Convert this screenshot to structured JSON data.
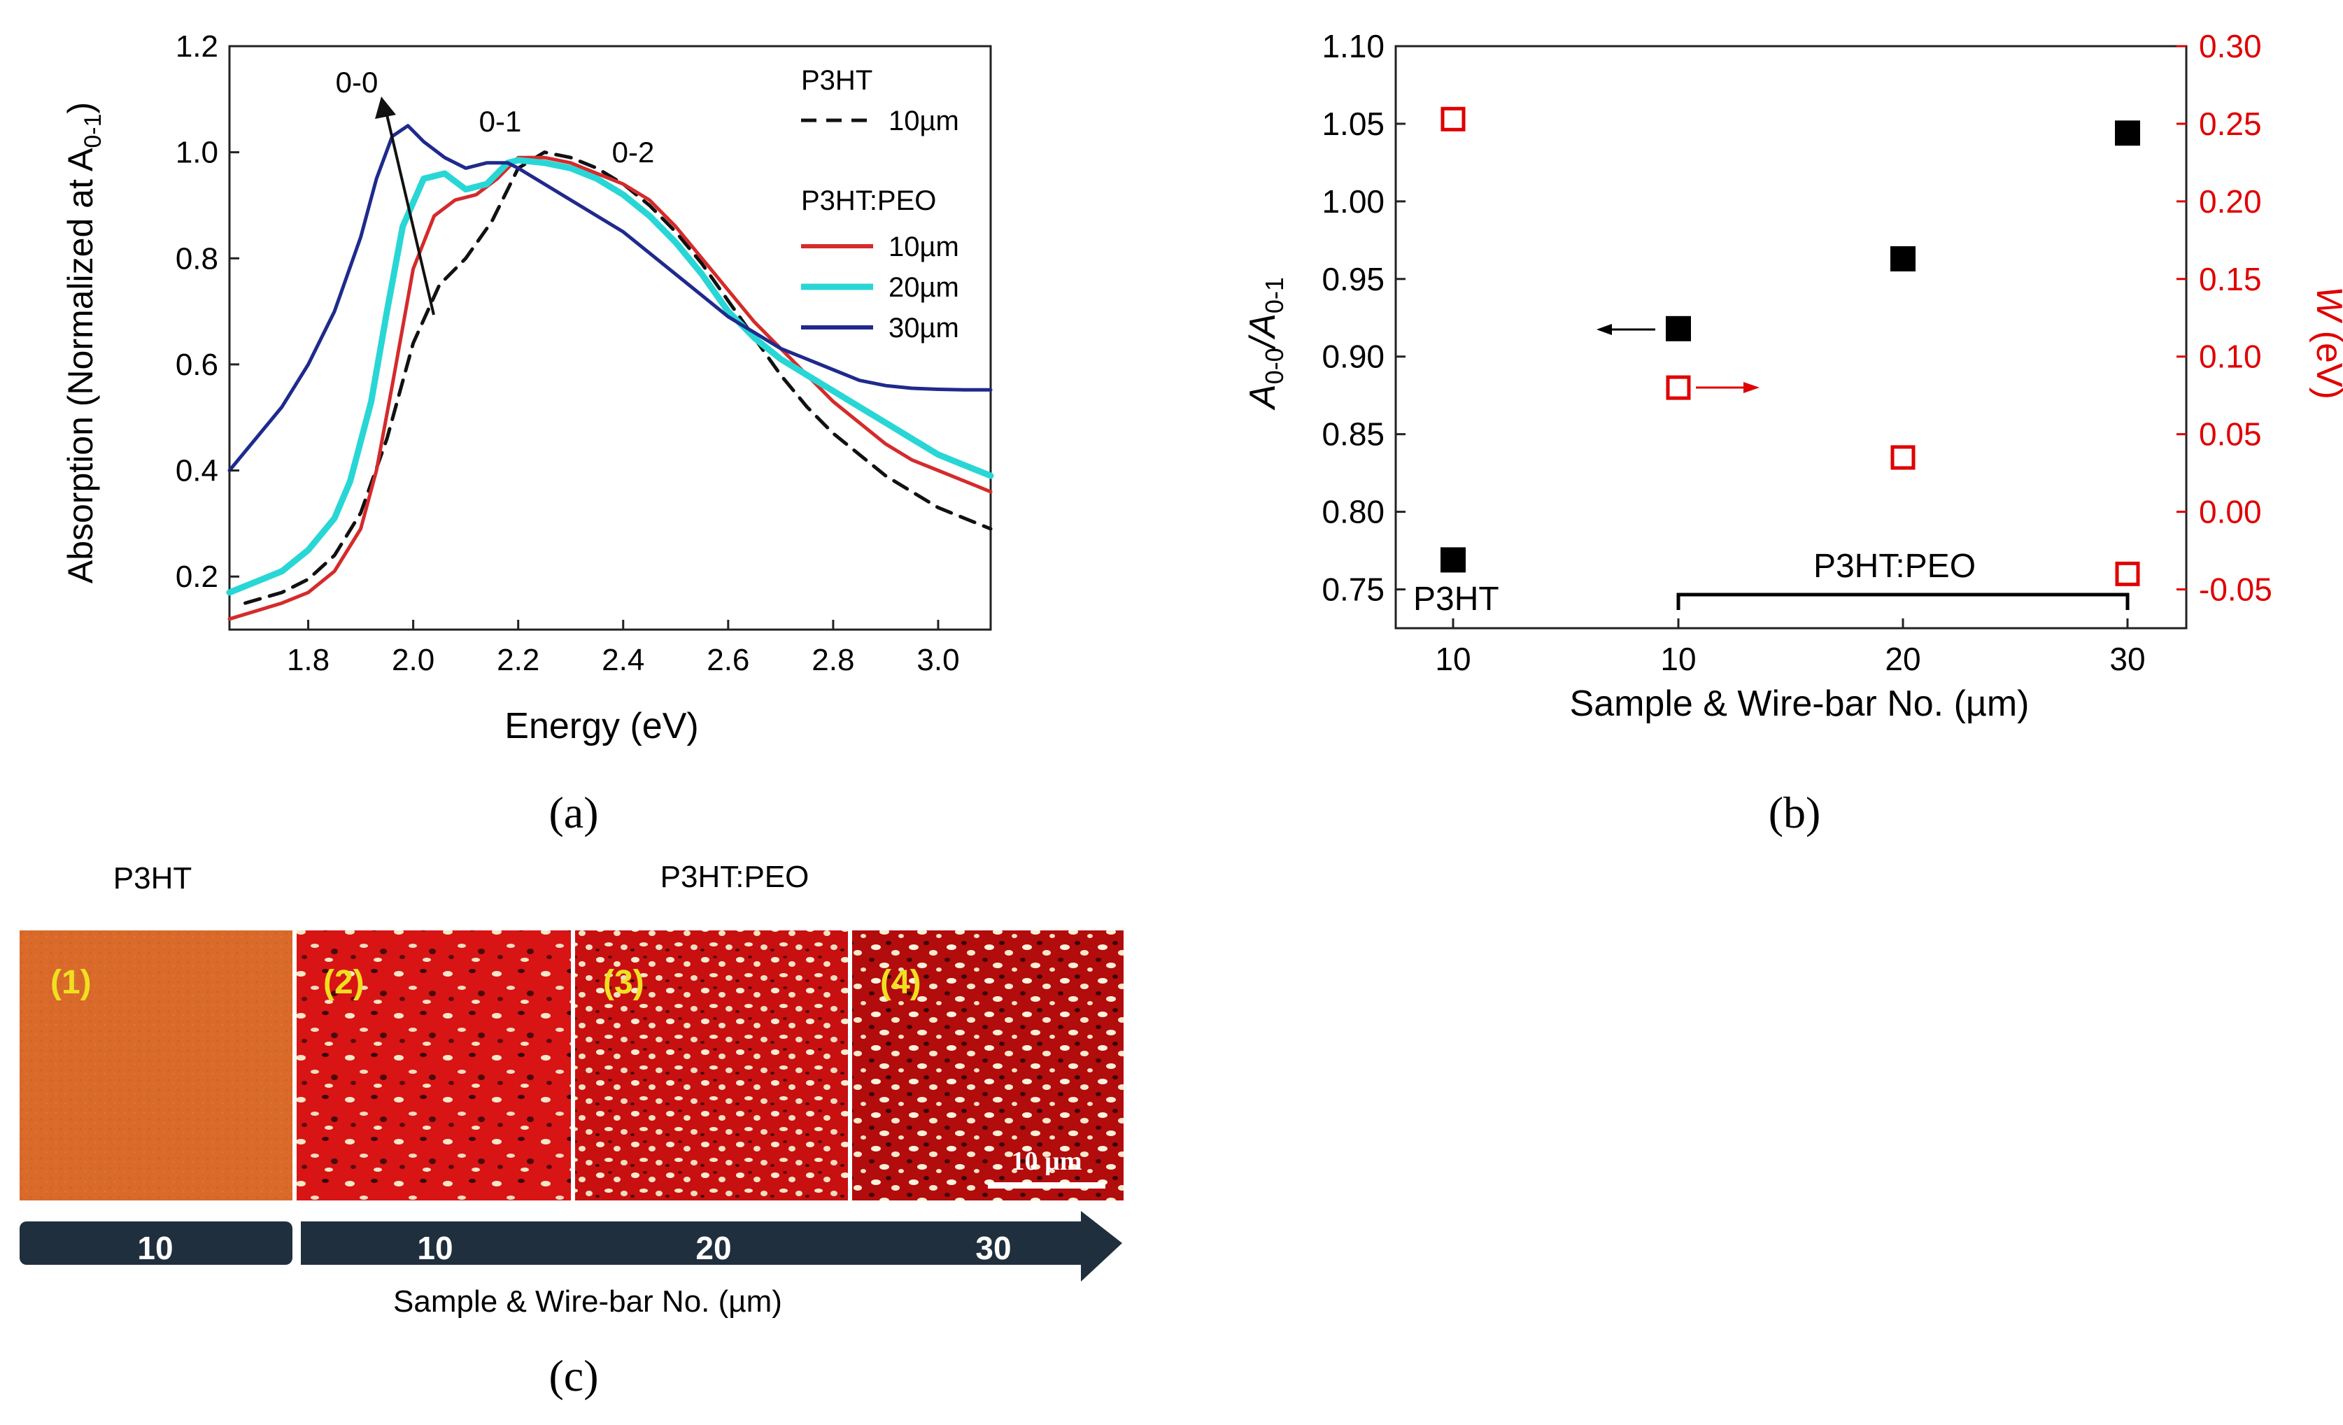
{
  "chart_data": [
    {
      "type": "line",
      "panel": "(a)",
      "xlabel": "Energy (eV)",
      "ylabel": "Absorption (Normalized at A",
      "ylabel_sub": "0-1",
      "ylabel_close": ")",
      "xlim": [
        1.65,
        3.1
      ],
      "ylim": [
        0.1,
        1.2
      ],
      "xticks": [
        "1.8",
        "2.0",
        "2.2",
        "2.4",
        "2.6",
        "2.8",
        "3.0"
      ],
      "yticks": [
        "0.2",
        "0.4",
        "0.6",
        "0.8",
        "1.0",
        "1.2"
      ],
      "annotations": [
        "0-0",
        "0-1",
        "0-2"
      ],
      "legend": {
        "group1_title": "P3HT",
        "group2_title": "P3HT:PEO"
      },
      "series": [
        {
          "name": "10µm",
          "group": "P3HT",
          "color": "#111111",
          "style": "dashed",
          "x": [
            1.68,
            1.75,
            1.8,
            1.85,
            1.9,
            1.95,
            2.0,
            2.05,
            2.1,
            2.15,
            2.2,
            2.25,
            2.3,
            2.35,
            2.4,
            2.45,
            2.5,
            2.55,
            2.6,
            2.65,
            2.7,
            2.75,
            2.8,
            2.85,
            2.9,
            2.95,
            3.0,
            3.05,
            3.1
          ],
          "y": [
            0.15,
            0.17,
            0.195,
            0.24,
            0.32,
            0.46,
            0.64,
            0.75,
            0.8,
            0.87,
            0.97,
            1.0,
            0.99,
            0.97,
            0.94,
            0.9,
            0.85,
            0.79,
            0.72,
            0.65,
            0.58,
            0.52,
            0.47,
            0.43,
            0.39,
            0.36,
            0.33,
            0.31,
            0.29
          ]
        },
        {
          "name": "10µm",
          "group": "P3HT:PEO",
          "color": "#d42b2b",
          "style": "solid",
          "x": [
            1.65,
            1.7,
            1.75,
            1.8,
            1.85,
            1.9,
            1.93,
            1.96,
            2.0,
            2.04,
            2.08,
            2.12,
            2.16,
            2.2,
            2.25,
            2.3,
            2.35,
            2.4,
            2.45,
            2.5,
            2.55,
            2.6,
            2.65,
            2.7,
            2.75,
            2.8,
            2.85,
            2.9,
            2.95,
            3.0,
            3.05,
            3.1
          ],
          "y": [
            0.12,
            0.135,
            0.15,
            0.17,
            0.21,
            0.29,
            0.4,
            0.56,
            0.78,
            0.88,
            0.91,
            0.92,
            0.95,
            0.99,
            0.99,
            0.98,
            0.96,
            0.94,
            0.91,
            0.86,
            0.8,
            0.74,
            0.68,
            0.63,
            0.58,
            0.53,
            0.49,
            0.45,
            0.42,
            0.4,
            0.38,
            0.36
          ]
        },
        {
          "name": "20µm",
          "group": "P3HT:PEO",
          "color": "#29d6d6",
          "style": "solid",
          "x": [
            1.65,
            1.7,
            1.75,
            1.8,
            1.85,
            1.88,
            1.92,
            1.95,
            1.98,
            2.02,
            2.06,
            2.1,
            2.14,
            2.18,
            2.2,
            2.25,
            2.3,
            2.35,
            2.4,
            2.45,
            2.5,
            2.55,
            2.6,
            2.65,
            2.7,
            2.75,
            2.8,
            2.85,
            2.9,
            2.95,
            3.0,
            3.05,
            3.1
          ],
          "y": [
            0.17,
            0.19,
            0.21,
            0.25,
            0.31,
            0.38,
            0.53,
            0.7,
            0.86,
            0.95,
            0.96,
            0.93,
            0.94,
            0.98,
            0.985,
            0.98,
            0.97,
            0.95,
            0.92,
            0.88,
            0.83,
            0.77,
            0.7,
            0.65,
            0.61,
            0.58,
            0.55,
            0.52,
            0.49,
            0.46,
            0.43,
            0.41,
            0.39
          ]
        },
        {
          "name": "30µm",
          "group": "P3HT:PEO",
          "color": "#1f2a8c",
          "style": "solid",
          "x": [
            1.65,
            1.7,
            1.75,
            1.8,
            1.85,
            1.9,
            1.93,
            1.96,
            1.99,
            2.02,
            2.06,
            2.1,
            2.14,
            2.18,
            2.2,
            2.25,
            2.3,
            2.35,
            2.4,
            2.45,
            2.5,
            2.55,
            2.6,
            2.65,
            2.7,
            2.75,
            2.8,
            2.85,
            2.9,
            2.95,
            3.0,
            3.05,
            3.1
          ],
          "y": [
            0.4,
            0.46,
            0.52,
            0.6,
            0.7,
            0.84,
            0.95,
            1.03,
            1.05,
            1.02,
            0.99,
            0.97,
            0.98,
            0.98,
            0.97,
            0.94,
            0.91,
            0.88,
            0.85,
            0.81,
            0.77,
            0.73,
            0.69,
            0.66,
            0.63,
            0.61,
            0.59,
            0.57,
            0.56,
            0.555,
            0.553,
            0.552,
            0.552
          ]
        }
      ]
    },
    {
      "type": "scatter",
      "panel": "(b)",
      "xlabel": "Sample & Wire-bar No. (µm)",
      "ylabel_left_a": "A",
      "ylabel_left_a_sub": "0-0",
      "ylabel_left_slash": "/A",
      "ylabel_left_b_sub": "0-1",
      "ylabel_right_w": "W",
      "ylabel_right_unit": " (eV)",
      "categories": [
        "10",
        "10",
        "20",
        "30"
      ],
      "ylim_left": [
        0.725,
        1.1
      ],
      "ylim_right": [
        -0.075,
        0.3
      ],
      "yticks_left": [
        "0.75",
        "0.80",
        "0.85",
        "0.90",
        "0.95",
        "1.00",
        "1.05",
        "1.10"
      ],
      "yticks_right": [
        "-0.05",
        "0.00",
        "0.05",
        "0.10",
        "0.15",
        "0.20",
        "0.25",
        "0.30"
      ],
      "group_labels": {
        "p3ht": "P3HT",
        "peo": "P3HT:PEO"
      },
      "series": [
        {
          "name": "A0-0/A0-1",
          "axis": "left",
          "marker": "filled-square",
          "color": "#000000",
          "values": [
            0.769,
            0.918,
            0.963,
            1.044
          ]
        },
        {
          "name": "W",
          "axis": "right",
          "marker": "open-square",
          "color": "#e00000",
          "values": [
            0.253,
            0.08,
            0.035,
            -0.04
          ]
        }
      ]
    }
  ],
  "panel_c": {
    "label": "(c)",
    "title_left": "P3HT",
    "title_right": "P3HT:PEO",
    "tiles": [
      "(1)",
      "(2)",
      "(3)",
      "(4)"
    ],
    "scale_bar": "10 µm",
    "arrow_values": [
      "10",
      "10",
      "20",
      "30"
    ],
    "xlabel": "Sample & Wire-bar No. (µm)"
  }
}
